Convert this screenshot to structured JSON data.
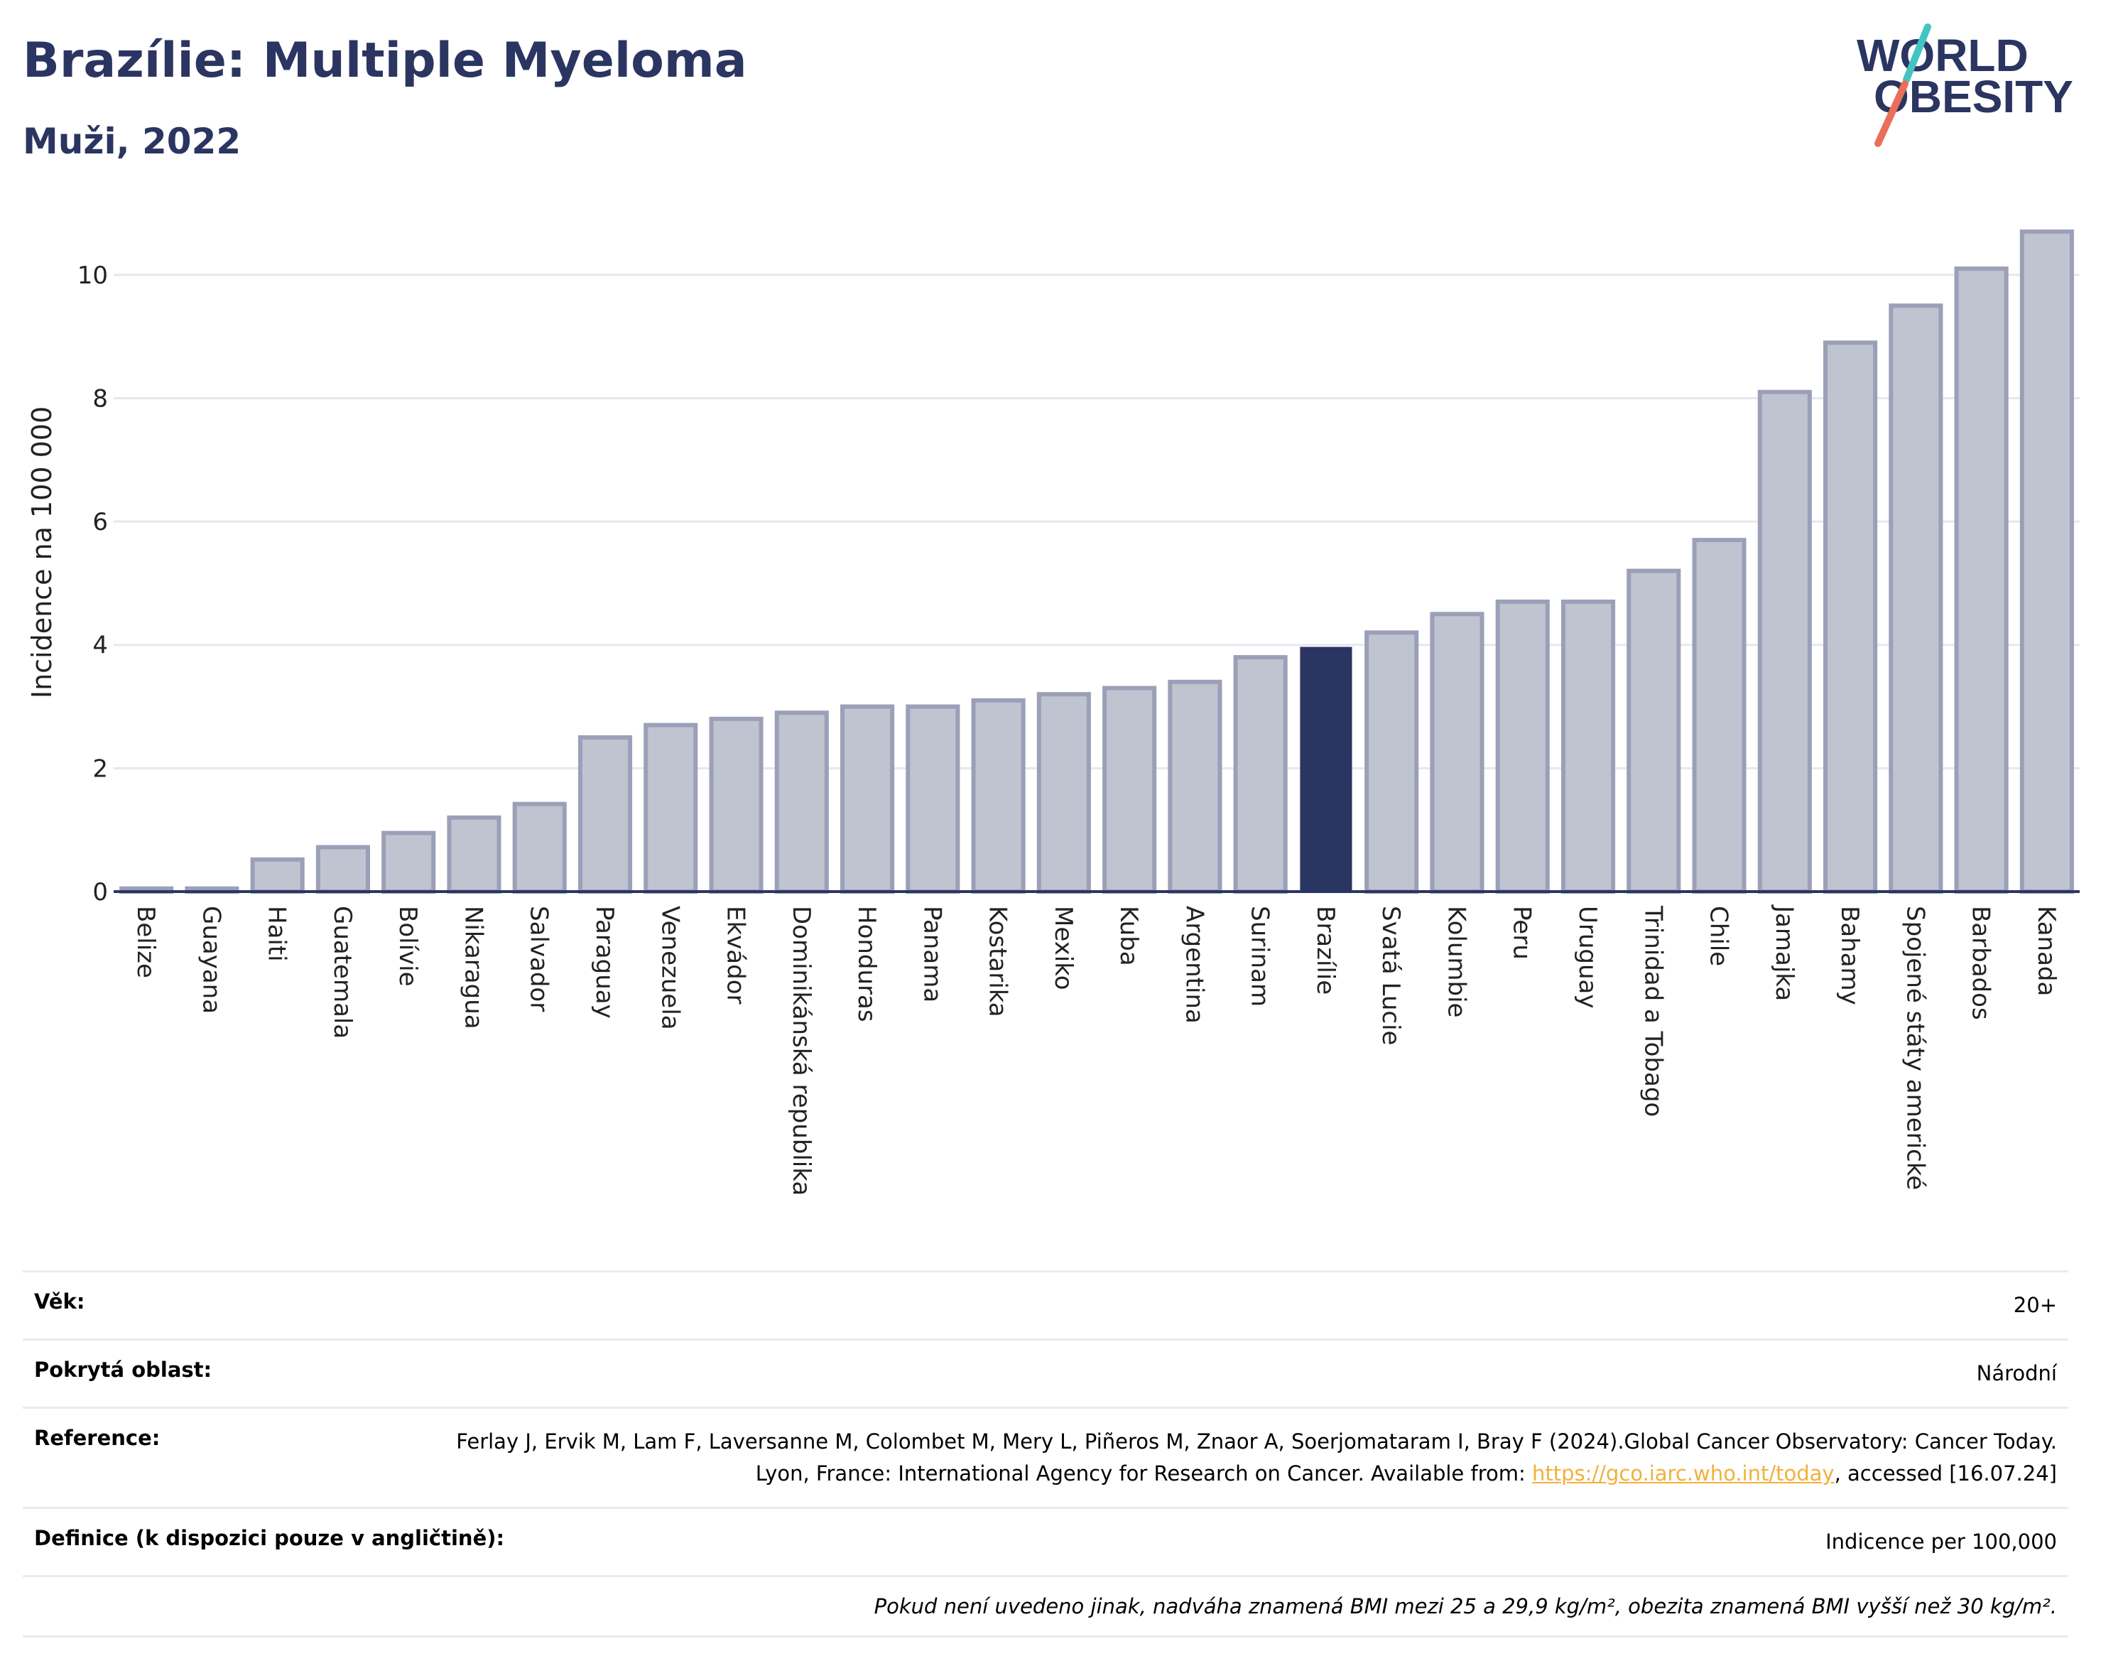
{
  "title": "Brazílie: Multiple Myeloma",
  "subtitle": "Muži, 2022",
  "logo": {
    "line1": "WORLD",
    "line2": "OBESITY",
    "slash_colors": [
      "#43c4c0",
      "#ea6f5a"
    ]
  },
  "colors": {
    "highlight": "#2b3561",
    "bar": "#c0c3d0",
    "bar_edge": "#9ba0b8",
    "text": "#2b3561",
    "grid": "#e6e8ef"
  },
  "chart_data": {
    "type": "bar",
    "ylabel": "Incidence na 100 000",
    "xlabel": "",
    "ylim": [
      0,
      11
    ],
    "yticks": [
      0,
      2,
      4,
      6,
      8,
      10
    ],
    "grid": true,
    "highlight": "Brazílie",
    "categories": [
      "Belize",
      "Guayana",
      "Haiti",
      "Guatemala",
      "Bolívie",
      "Nikaragua",
      "Salvador",
      "Paraguay",
      "Venezuela",
      "Ekvádor",
      "Dominikánská republika",
      "Honduras",
      "Panama",
      "Kostarika",
      "Mexiko",
      "Kuba",
      "Argentina",
      "Surinam",
      "Brazílie",
      "Svatá Lucie",
      "Kolumbie",
      "Peru",
      "Uruguay",
      "Trinidad a Tobago",
      "Chile",
      "Jamajka",
      "Bahamy",
      "Spojené státy americké",
      "Barbados",
      "Kanada"
    ],
    "values": [
      0.05,
      0.05,
      0.52,
      0.72,
      0.95,
      1.2,
      1.42,
      2.5,
      2.7,
      2.8,
      2.9,
      3.0,
      3.0,
      3.1,
      3.2,
      3.3,
      3.4,
      3.8,
      3.95,
      4.2,
      4.5,
      4.7,
      4.7,
      5.2,
      5.7,
      8.1,
      8.9,
      9.5,
      10.1,
      10.7
    ]
  },
  "info": {
    "age_label": "Věk:",
    "age_value": "20+",
    "area_label": "Pokrytá oblast:",
    "area_value": "Národní",
    "reference_label": "Reference:",
    "reference_text": "Ferlay J, Ervik M, Lam F, Laversanne M, Colombet M, Mery L, Piñeros M, Znaor A, Soerjomataram I, Bray F (2024).Global Cancer Observatory: Cancer Today. Lyon, France: International Agency for Research on Cancer. Available from: ",
    "reference_link": "https://gco.iarc.who.int/today",
    "reference_tail": ", accessed [16.07.24]",
    "definition_label": "Definice (k dispozici pouze v angličtině):",
    "definition_value": "Indicence per 100,000",
    "note": "Pokud není uvedeno jinak, nadváha znamená BMI mezi 25 a 29,9 kg/m², obezita znamená BMI vyšší než 30 kg/m²."
  }
}
